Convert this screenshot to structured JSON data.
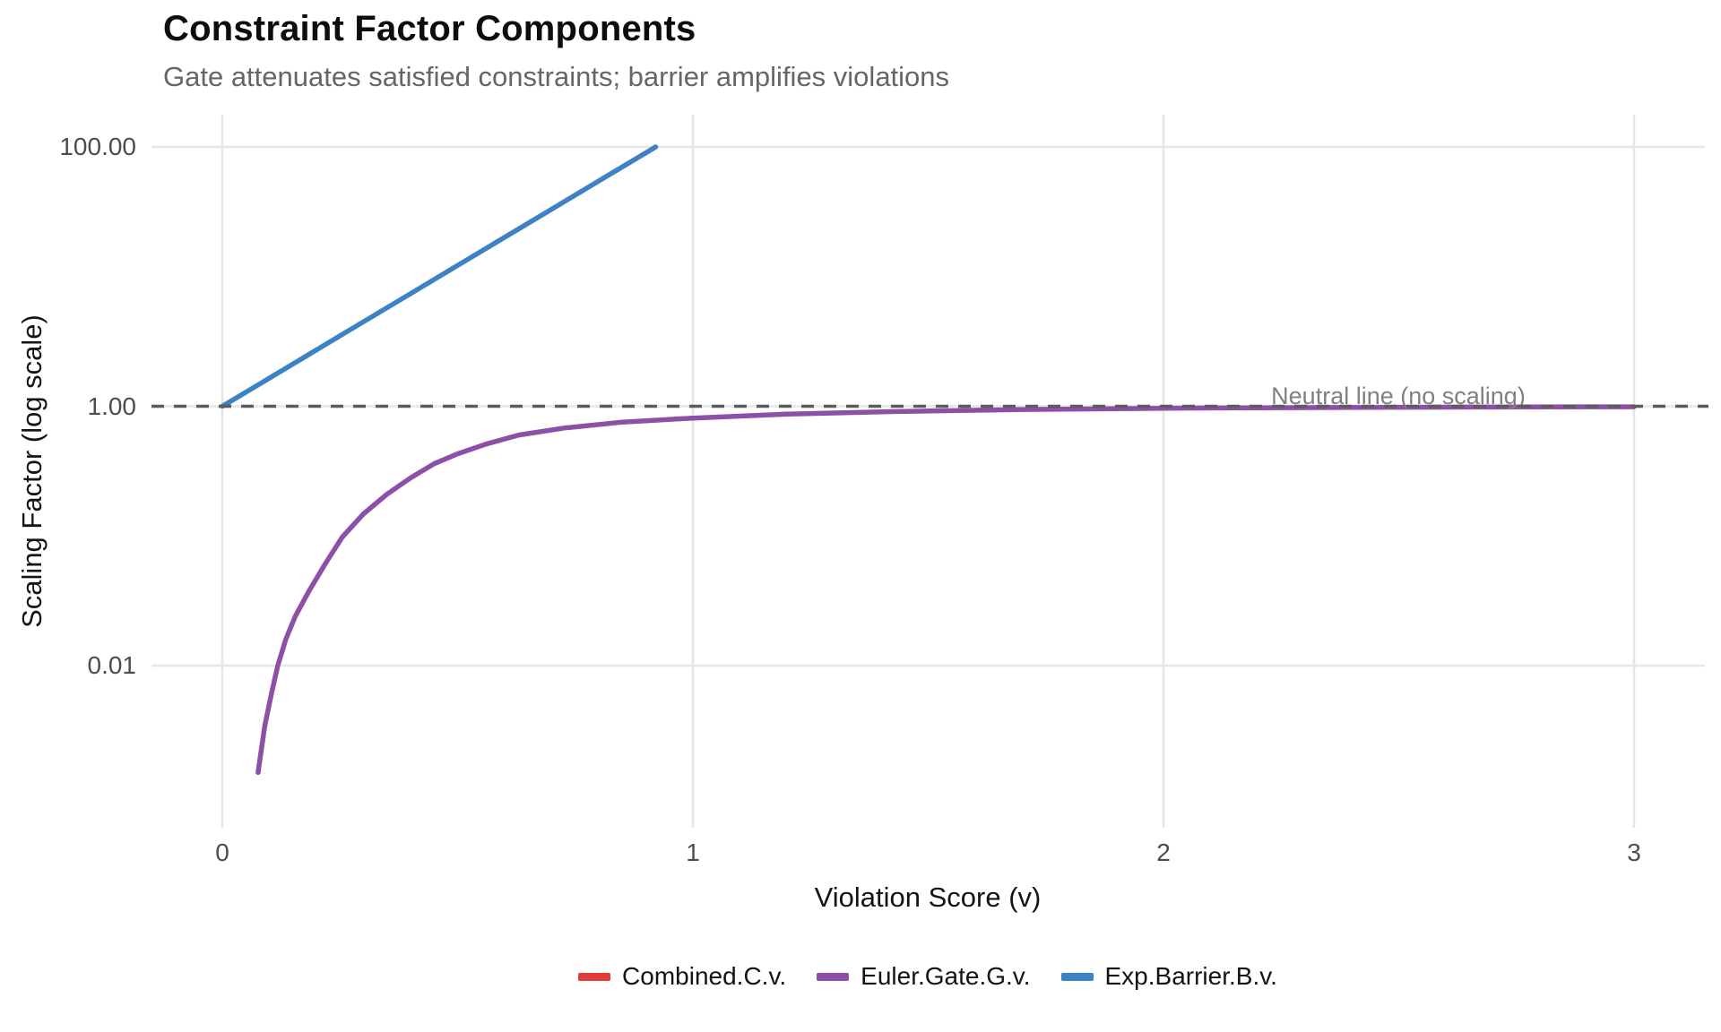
{
  "header": {
    "title": "Constraint Factor Components",
    "subtitle": "Gate attenuates satisfied constraints; barrier amplifies violations"
  },
  "chart_data": {
    "type": "line",
    "title": "Constraint Factor Components",
    "subtitle": "Gate attenuates satisfied constraints; barrier amplifies violations",
    "x_axis": {
      "label": "Violation Score (v)",
      "ticks": [
        0,
        1,
        2,
        3
      ],
      "range": [
        0,
        3
      ],
      "scale": "linear"
    },
    "y_axis": {
      "label": "Scaling Factor (log scale)",
      "scale": "log10",
      "ticks": [
        {
          "value": 100,
          "label": "100.00"
        },
        {
          "value": 1,
          "label": "1.00"
        },
        {
          "value": 0.01,
          "label": "0.01"
        }
      ],
      "limits": [
        0.001,
        100
      ]
    },
    "grid": "major-only",
    "legend_position": "bottom",
    "reference_line": {
      "y": 1,
      "style": "dashed",
      "annotation": "Neutral line (no scaling)",
      "annotation_x": 2.5
    },
    "series": [
      {
        "id": "combined",
        "name": "Combined.C.v.",
        "color": "#e03c3a",
        "visible_in_plot": false,
        "points": []
      },
      {
        "id": "euler-gate",
        "name": "Euler.Gate.G.v.",
        "color": "#8e4fa7",
        "visible_in_plot": true,
        "points": [
          [
            0.076,
            0.0015
          ],
          [
            0.09,
            0.0034
          ],
          [
            0.105,
            0.0062
          ],
          [
            0.118,
            0.01
          ],
          [
            0.135,
            0.016
          ],
          [
            0.155,
            0.024
          ],
          [
            0.185,
            0.038
          ],
          [
            0.22,
            0.062
          ],
          [
            0.255,
            0.098
          ],
          [
            0.3,
            0.148
          ],
          [
            0.35,
            0.21
          ],
          [
            0.4,
            0.28
          ],
          [
            0.45,
            0.36
          ],
          [
            0.5,
            0.43
          ],
          [
            0.56,
            0.51
          ],
          [
            0.63,
            0.6
          ],
          [
            0.728,
            0.68
          ],
          [
            0.85,
            0.755
          ],
          [
            1.0,
            0.81
          ],
          [
            1.2,
            0.87
          ],
          [
            1.43,
            0.91
          ],
          [
            1.7,
            0.945
          ],
          [
            2.06,
            0.969
          ],
          [
            2.5,
            0.982
          ],
          [
            3.0,
            0.99
          ]
        ]
      },
      {
        "id": "exp-barrier",
        "name": "Exp.Barrier.B.v.",
        "color": "#3d82c4",
        "visible_in_plot": true,
        "points": [
          [
            0,
            1
          ],
          [
            0.1,
            1.6487
          ],
          [
            0.2,
            2.7183
          ],
          [
            0.3,
            4.4817
          ],
          [
            0.4,
            7.389
          ],
          [
            0.5,
            12.182
          ],
          [
            0.6,
            20.086
          ],
          [
            0.7,
            33.115
          ],
          [
            0.8,
            54.598
          ],
          [
            0.9,
            90.017
          ],
          [
            0.921,
            100
          ]
        ]
      }
    ],
    "colors": {
      "gridline": "#e6e6e6",
      "reference_line": "#5c5c5c",
      "annotation_text": "#808080",
      "tick_label": "#4d4d4d",
      "subtitle_text": "#666666"
    }
  }
}
